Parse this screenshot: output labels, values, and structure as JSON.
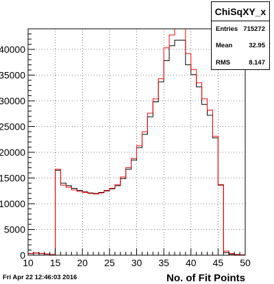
{
  "chart_data": {
    "type": "histogram",
    "title": "",
    "xlabel": "No. of Fit Points",
    "ylabel": "",
    "xlim": [
      10,
      50
    ],
    "ylim": [
      0,
      44000
    ],
    "bin_width": 1,
    "x_ticks": [
      "10",
      "15",
      "20",
      "25",
      "30",
      "35",
      "40",
      "45",
      "50"
    ],
    "y_ticks": [
      {
        "value": 0,
        "label": "0"
      },
      {
        "value": 5000,
        "label": "5000"
      },
      {
        "value": 10000,
        "label": "10000"
      },
      {
        "value": 15000,
        "label": "15000"
      },
      {
        "value": 20000,
        "label": "20000"
      },
      {
        "value": 25000,
        "label": "25000"
      },
      {
        "value": 30000,
        "label": "30000"
      },
      {
        "value": 35000,
        "label": "35000"
      },
      {
        "value": 40000,
        "label": "40000"
      }
    ],
    "grid": true,
    "series": [
      {
        "color": "#000000",
        "bins_x": [
          10,
          11,
          12,
          13,
          14,
          15,
          16,
          17,
          18,
          19,
          20,
          21,
          22,
          23,
          24,
          25,
          26,
          27,
          28,
          29,
          30,
          31,
          32,
          33,
          34,
          35,
          36,
          37,
          38,
          39,
          40,
          41,
          42,
          43,
          44,
          45,
          46,
          47,
          48,
          49
        ],
        "values": [
          300,
          400,
          300,
          200,
          100,
          16500,
          14000,
          13500,
          13000,
          12600,
          12300,
          12100,
          12000,
          12200,
          12500,
          12900,
          13500,
          14900,
          16700,
          18500,
          20900,
          23500,
          26900,
          29800,
          33700,
          37800,
          40700,
          41800,
          41800,
          37000,
          35100,
          32700,
          29300,
          27200,
          22800,
          13700,
          500,
          200,
          100,
          50
        ]
      },
      {
        "color": "#ff0000",
        "bins_x": [
          10,
          11,
          12,
          13,
          14,
          15,
          16,
          17,
          18,
          19,
          20,
          21,
          22,
          23,
          24,
          25,
          26,
          27,
          28,
          29,
          30,
          31,
          32,
          33,
          34,
          35,
          36,
          37,
          38,
          39,
          40,
          41,
          42,
          43,
          44,
          45,
          46,
          47,
          48,
          49
        ],
        "values": [
          350,
          450,
          350,
          250,
          120,
          16700,
          13600,
          13200,
          12700,
          12400,
          12200,
          12000,
          11900,
          12100,
          12600,
          13000,
          13700,
          15200,
          17000,
          18800,
          21300,
          24000,
          27600,
          30400,
          34300,
          40300,
          42800,
          44000,
          44000,
          39200,
          36100,
          33500,
          30400,
          28200,
          23100,
          13600,
          800,
          300,
          150,
          80
        ]
      }
    ]
  },
  "stats": {
    "title": "ChiSqXY_x",
    "entries_label": "Entries",
    "entries_value": "715272",
    "mean_label": "Mean",
    "mean_value": "32.95",
    "rms_label": "RMS",
    "rms_value": "8.147"
  },
  "footer": {
    "date": "Fri Apr 22 12:46:03 2016"
  }
}
